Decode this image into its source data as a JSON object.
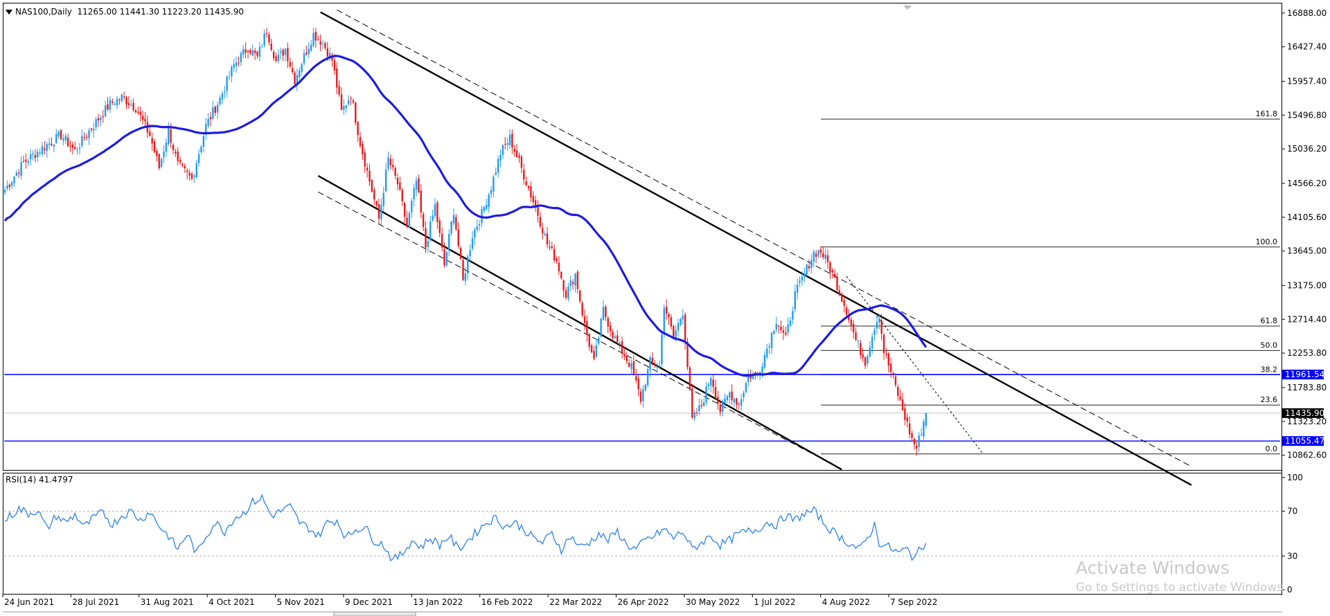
{
  "header": {
    "symbol": "NAS100,Daily",
    "ohlc": "11265.00 11441.30 11223.20 11435.90"
  },
  "rsi_label": "RSI(14) 41.4797",
  "watermark": {
    "title": "Activate Windows",
    "subtitle": "Go to Settings to activate Windows."
  },
  "colors": {
    "bull": "#1e9bf0",
    "bear": "#e8181b",
    "ma": "#1c1ce0",
    "rsi": "#2a82e4",
    "support_lines": "#0000ff",
    "channel": "#000000",
    "price_label_bg": "#0000ff",
    "current_price_bg": "#000000"
  },
  "chart_data": {
    "type": "candlestick",
    "symbol": "NAS100",
    "timeframe": "Daily",
    "last_bar": {
      "open": 11265.0,
      "high": 11441.3,
      "low": 11223.2,
      "close": 11435.9
    },
    "price_axis": {
      "ticks": [
        16888.0,
        16427.4,
        15957.4,
        15496.8,
        15036.2,
        14566.2,
        14105.6,
        13645.0,
        13175.0,
        12714.4,
        12253.8,
        11783.8,
        11323.2,
        10862.6
      ],
      "range": [
        10680,
        16990
      ]
    },
    "price_labels": [
      {
        "value": 11961.54,
        "text": "11961.54",
        "style": "blue"
      },
      {
        "value": 11435.9,
        "text": "11435.90",
        "style": "black"
      },
      {
        "value": 11055.47,
        "text": "11055.47",
        "style": "blue"
      }
    ],
    "horizontal_lines": [
      11961.54,
      11055.47
    ],
    "fibonacci": {
      "high": 13700,
      "low": 10880,
      "levels": [
        {
          "level": 161.8,
          "label": "161.8"
        },
        {
          "level": 100.0,
          "label": "100.0"
        },
        {
          "level": 61.8,
          "label": "61.8"
        },
        {
          "level": 50.0,
          "label": "50.0"
        },
        {
          "level": 38.2,
          "label": "38.2"
        },
        {
          "level": 23.6,
          "label": "23.6"
        },
        {
          "level": 0.0,
          "label": "0.0"
        }
      ]
    },
    "x_labels": [
      "24 Jun 2021",
      "28 Jul 2021",
      "31 Aug 2021",
      "4 Oct 2021",
      "5 Nov 2021",
      "9 Dec 2021",
      "13 Jan 2022",
      "16 Feb 2022",
      "22 Mar 2022",
      "26 Apr 2022",
      "30 May 2022",
      "1 Jul 2022",
      "4 Aug 2022",
      "7 Sep 2022"
    ],
    "price_anchors": [
      [
        0,
        14480
      ],
      [
        8,
        14850
      ],
      [
        16,
        15050
      ],
      [
        24,
        15220
      ],
      [
        30,
        15010
      ],
      [
        36,
        15280
      ],
      [
        45,
        15650
      ],
      [
        50,
        15740
      ],
      [
        56,
        15600
      ],
      [
        62,
        15220
      ],
      [
        66,
        14780
      ],
      [
        70,
        15290
      ],
      [
        74,
        14820
      ],
      [
        80,
        14620
      ],
      [
        86,
        15350
      ],
      [
        92,
        15720
      ],
      [
        98,
        16180
      ],
      [
        104,
        16420
      ],
      [
        108,
        16280
      ],
      [
        112,
        16660
      ],
      [
        116,
        16230
      ],
      [
        120,
        16400
      ],
      [
        124,
        15980
      ],
      [
        128,
        16300
      ],
      [
        132,
        16600
      ],
      [
        136,
        16480
      ],
      [
        140,
        16250
      ],
      [
        144,
        15540
      ],
      [
        148,
        15780
      ],
      [
        152,
        15120
      ],
      [
        156,
        14600
      ],
      [
        160,
        14080
      ],
      [
        164,
        14900
      ],
      [
        168,
        14560
      ],
      [
        172,
        13980
      ],
      [
        176,
        14600
      ],
      [
        180,
        13700
      ],
      [
        184,
        14260
      ],
      [
        188,
        13450
      ],
      [
        192,
        14200
      ],
      [
        196,
        13230
      ],
      [
        200,
        13860
      ],
      [
        204,
        14150
      ],
      [
        208,
        14520
      ],
      [
        212,
        14980
      ],
      [
        216,
        15180
      ],
      [
        220,
        14860
      ],
      [
        224,
        14500
      ],
      [
        228,
        14150
      ],
      [
        232,
        13740
      ],
      [
        236,
        13520
      ],
      [
        240,
        13060
      ],
      [
        244,
        13330
      ],
      [
        248,
        12630
      ],
      [
        252,
        12120
      ],
      [
        256,
        12840
      ],
      [
        260,
        12510
      ],
      [
        264,
        12280
      ],
      [
        268,
        12060
      ],
      [
        272,
        11620
      ],
      [
        276,
        12130
      ],
      [
        280,
        12080
      ],
      [
        282,
        12920
      ],
      [
        286,
        12470
      ],
      [
        290,
        12820
      ],
      [
        294,
        11340
      ],
      [
        298,
        11540
      ],
      [
        302,
        11950
      ],
      [
        306,
        11470
      ],
      [
        310,
        11710
      ],
      [
        314,
        11560
      ],
      [
        318,
        11940
      ],
      [
        322,
        11960
      ],
      [
        326,
        12320
      ],
      [
        330,
        12710
      ],
      [
        334,
        12440
      ],
      [
        338,
        13050
      ],
      [
        342,
        13330
      ],
      [
        346,
        13620
      ],
      [
        349,
        13640
      ],
      [
        352,
        13480
      ],
      [
        356,
        13180
      ],
      [
        360,
        12840
      ],
      [
        364,
        12430
      ],
      [
        368,
        12140
      ],
      [
        372,
        12620
      ],
      [
        374,
        12780
      ],
      [
        376,
        12280
      ],
      [
        380,
        11900
      ],
      [
        384,
        11480
      ],
      [
        388,
        11080
      ],
      [
        390,
        10960
      ],
      [
        392,
        11200
      ],
      [
        394,
        11435
      ]
    ],
    "rsi": {
      "period": 14,
      "value": 41.4797,
      "levels": [
        70,
        30
      ],
      "axis_ticks": [
        "100",
        "70",
        "30",
        "0"
      ],
      "anchors": [
        [
          0,
          62
        ],
        [
          6,
          72
        ],
        [
          10,
          68
        ],
        [
          14,
          71
        ],
        [
          18,
          54
        ],
        [
          22,
          66
        ],
        [
          26,
          60
        ],
        [
          30,
          67
        ],
        [
          34,
          56
        ],
        [
          38,
          64
        ],
        [
          42,
          69
        ],
        [
          46,
          58
        ],
        [
          50,
          66
        ],
        [
          54,
          70
        ],
        [
          58,
          62
        ],
        [
          62,
          70
        ],
        [
          66,
          57
        ],
        [
          70,
          48
        ],
        [
          74,
          36
        ],
        [
          78,
          50
        ],
        [
          82,
          32
        ],
        [
          86,
          48
        ],
        [
          90,
          60
        ],
        [
          94,
          52
        ],
        [
          98,
          64
        ],
        [
          102,
          68
        ],
        [
          106,
          78
        ],
        [
          110,
          82
        ],
        [
          114,
          66
        ],
        [
          118,
          70
        ],
        [
          122,
          74
        ],
        [
          126,
          60
        ],
        [
          130,
          55
        ],
        [
          134,
          48
        ],
        [
          138,
          60
        ],
        [
          142,
          62
        ],
        [
          146,
          46
        ],
        [
          150,
          54
        ],
        [
          154,
          56
        ],
        [
          158,
          44
        ],
        [
          162,
          40
        ],
        [
          166,
          26
        ],
        [
          170,
          32
        ],
        [
          174,
          44
        ],
        [
          178,
          38
        ],
        [
          182,
          46
        ],
        [
          186,
          40
        ],
        [
          190,
          48
        ],
        [
          194,
          36
        ],
        [
          198,
          44
        ],
        [
          202,
          52
        ],
        [
          206,
          60
        ],
        [
          210,
          64
        ],
        [
          214,
          56
        ],
        [
          218,
          60
        ],
        [
          222,
          54
        ],
        [
          226,
          46
        ],
        [
          230,
          42
        ],
        [
          234,
          50
        ],
        [
          238,
          36
        ],
        [
          242,
          48
        ],
        [
          246,
          38
        ],
        [
          250,
          42
        ],
        [
          254,
          50
        ],
        [
          258,
          44
        ],
        [
          262,
          52
        ],
        [
          266,
          40
        ],
        [
          270,
          36
        ],
        [
          274,
          44
        ],
        [
          278,
          48
        ],
        [
          282,
          54
        ],
        [
          286,
          46
        ],
        [
          290,
          52
        ],
        [
          294,
          36
        ],
        [
          298,
          42
        ],
        [
          302,
          48
        ],
        [
          306,
          40
        ],
        [
          310,
          44
        ],
        [
          314,
          50
        ],
        [
          318,
          52
        ],
        [
          322,
          54
        ],
        [
          326,
          60
        ],
        [
          330,
          58
        ],
        [
          334,
          66
        ],
        [
          338,
          62
        ],
        [
          342,
          68
        ],
        [
          346,
          70
        ],
        [
          348,
          66
        ],
        [
          350,
          60
        ],
        [
          354,
          52
        ],
        [
          358,
          46
        ],
        [
          362,
          40
        ],
        [
          366,
          36
        ],
        [
          370,
          50
        ],
        [
          372,
          58
        ],
        [
          374,
          42
        ],
        [
          378,
          38
        ],
        [
          382,
          33
        ],
        [
          386,
          36
        ],
        [
          388,
          30
        ],
        [
          390,
          32
        ],
        [
          392,
          36
        ],
        [
          394,
          41.5
        ]
      ]
    }
  }
}
